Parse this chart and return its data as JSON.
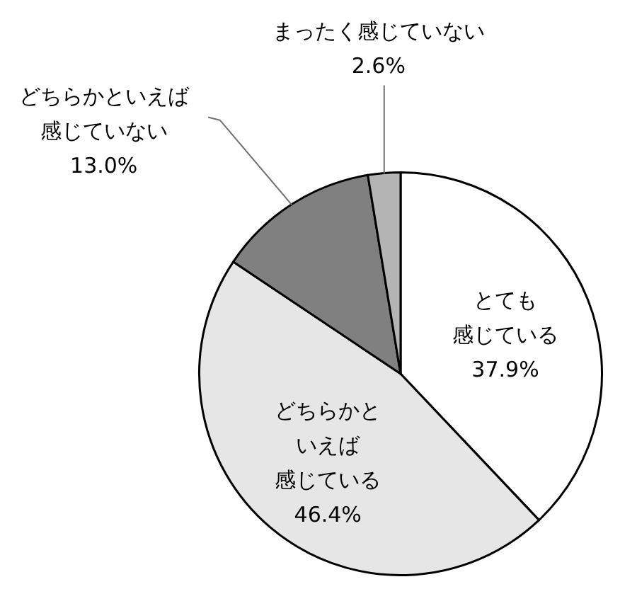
{
  "chart_data": {
    "type": "pie",
    "categories": [
      "とても感じている",
      "どちらかといえば感じている",
      "どちらかといえば感じていない",
      "まったく感じていない"
    ],
    "values": [
      37.9,
      46.4,
      13.0,
      2.6
    ],
    "colors": [
      "#ffffff",
      "#e6e6e6",
      "#808080",
      "#b4b4b4"
    ],
    "value_labels": [
      "37.9%",
      "46.4%",
      "13.0%",
      "2.6%"
    ]
  }
}
